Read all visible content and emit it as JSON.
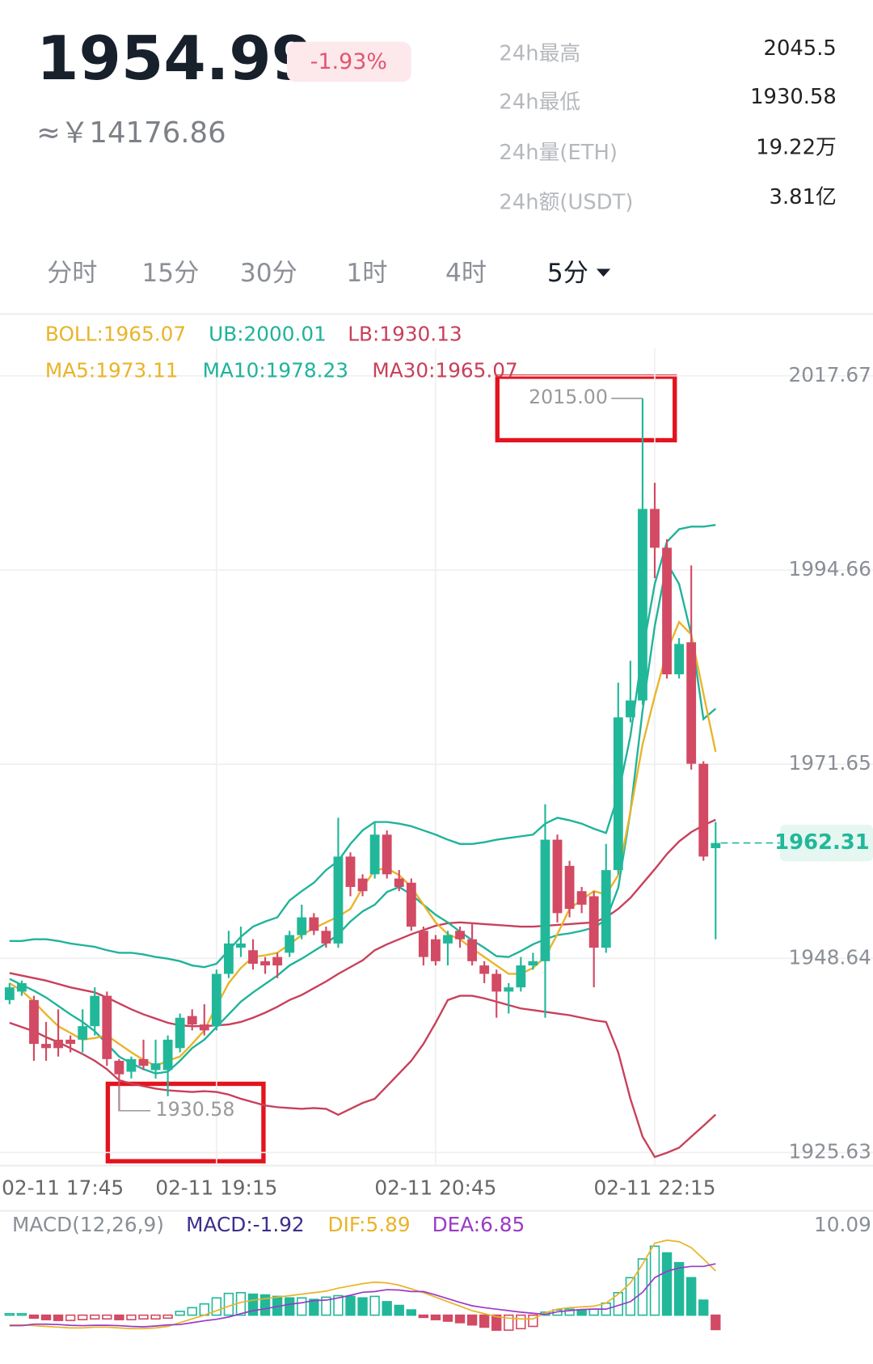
{
  "header": {
    "price": "1954.99",
    "change": "-1.93%",
    "cny": "≈￥14176.86",
    "stats": [
      {
        "label": "24h最高",
        "value": "2045.5"
      },
      {
        "label": "24h最低",
        "value": "1930.58"
      },
      {
        "label": "24h量(ETH)",
        "value": "19.22万"
      },
      {
        "label": "24h额(USDT)",
        "value": "3.81亿"
      }
    ]
  },
  "tabs": [
    {
      "label": "分时"
    },
    {
      "label": "15分"
    },
    {
      "label": "30分"
    },
    {
      "label": "1时"
    },
    {
      "label": "4时"
    },
    {
      "label": "5分",
      "active": true
    }
  ],
  "chart_data": [
    {
      "type": "candlestick",
      "legend": [
        [
          {
            "text": "BOLL:1965.07",
            "color": "#e9b429"
          },
          {
            "text": "UB:2000.01",
            "color": "#1fb39a"
          },
          {
            "text": "LB:1930.13",
            "color": "#c8405a"
          }
        ],
        [
          {
            "text": "MA5:1973.11",
            "color": "#e9b429"
          },
          {
            "text": "MA10:1978.23",
            "color": "#1fb39a"
          },
          {
            "text": "MA30:1965.07",
            "color": "#c8405a"
          }
        ]
      ],
      "ylim": [
        1924.08,
        2020.97
      ],
      "yticks": [
        2017.67,
        1994.66,
        1971.65,
        1948.64,
        1925.63
      ],
      "grid": true,
      "xticks": [
        {
          "value": -1,
          "label": "02-11 17:45"
        },
        {
          "value": 17,
          "label": "02-11 19:15"
        },
        {
          "value": 35,
          "label": "02-11 20:45"
        },
        {
          "value": 53,
          "label": "02-11 22:15"
        }
      ],
      "up_color": "#21b89a",
      "down_color": "#d24a64",
      "candles": {
        "open": [
          1943.7,
          1944.7,
          1943.7,
          1938.5,
          1939.0,
          1939.0,
          1939.0,
          1940.6,
          1944.2,
          1936.5,
          1935.2,
          1936.7,
          1935.4,
          1935.4,
          1938.0,
          1941.8,
          1940.8,
          1940.6,
          1946.8,
          1949.9,
          1949.6,
          1948.3,
          1948.8,
          1949.3,
          1951.4,
          1953.5,
          1951.9,
          1950.4,
          1960.7,
          1958.1,
          1958.6,
          1963.3,
          1958.1,
          1957.6,
          1951.9,
          1950.9,
          1950.4,
          1951.9,
          1950.9,
          1947.8,
          1946.8,
          1944.7,
          1945.2,
          1947.8,
          1948.3,
          1962.7,
          1959.6,
          1956.6,
          1956.0,
          1949.9,
          1959.1,
          1977.2,
          1979.2,
          2001.9,
          1997.3,
          1982.3,
          1986.1,
          1971.7,
          1961.7
        ],
        "high": [
          1945.7,
          1946.0,
          1944.2,
          1941.1,
          1942.6,
          1939.5,
          1942.6,
          1945.2,
          1944.7,
          1936.7,
          1937.0,
          1939.0,
          1939.0,
          1939.5,
          1942.1,
          1942.6,
          1943.2,
          1947.3,
          1951.9,
          1952.4,
          1950.9,
          1948.8,
          1949.3,
          1951.9,
          1955.0,
          1954.0,
          1952.4,
          1965.3,
          1961.2,
          1958.6,
          1964.8,
          1963.8,
          1959.1,
          1958.1,
          1952.4,
          1951.4,
          1951.9,
          1952.4,
          1952.9,
          1948.3,
          1947.3,
          1945.7,
          1948.8,
          1949.3,
          1966.9,
          1963.3,
          1960.2,
          1957.1,
          1956.6,
          1962.2,
          1981.3,
          1983.9,
          2015,
          2005.0,
          1998.3,
          1986.6,
          1995.2,
          1972.0,
          1964.8
        ],
        "low": [
          1943.2,
          1944.2,
          1936.5,
          1936.5,
          1937.0,
          1937.5,
          1937.5,
          1939.5,
          1935.9,
          1930.58,
          1934.4,
          1935.4,
          1934.4,
          1932.3,
          1937.5,
          1940.1,
          1939.5,
          1940.1,
          1946.3,
          1948.8,
          1947.3,
          1946.8,
          1946.3,
          1948.8,
          1950.9,
          1951.4,
          1949.9,
          1949.9,
          1956.0,
          1956.0,
          1958.1,
          1958.1,
          1956.6,
          1951.9,
          1947.8,
          1947.8,
          1947.8,
          1949.9,
          1947.8,
          1945.7,
          1941.6,
          1942.1,
          1944.7,
          1947.3,
          1941.6,
          1952.9,
          1953.5,
          1954.0,
          1945.2,
          1949.3,
          1958.6,
          1976.6,
          1978.7,
          1993.7,
          1981.8,
          1981.8,
          1971.0,
          1960.2,
          1950.9
        ],
        "close": [
          1945.2,
          1945.7,
          1938.5,
          1938.0,
          1938.0,
          1938.5,
          1940.6,
          1944.2,
          1936.7,
          1934.9,
          1936.7,
          1935.9,
          1936.2,
          1939.0,
          1941.6,
          1940.8,
          1940.1,
          1946.8,
          1950.4,
          1950.4,
          1948.0,
          1947.8,
          1947.8,
          1951.4,
          1953.5,
          1951.9,
          1950.4,
          1960.7,
          1957.1,
          1956.6,
          1963.3,
          1958.6,
          1957.1,
          1952.4,
          1948.8,
          1948.3,
          1951.4,
          1950.9,
          1948.3,
          1946.8,
          1944.7,
          1945.2,
          1947.8,
          1948.3,
          1962.7,
          1954.0,
          1954.5,
          1955.0,
          1949.9,
          1959.1,
          1977.2,
          1979.2,
          2001.9,
          1997.3,
          1982.3,
          1985.9,
          1971.7,
          1960.7,
          1962.31
        ]
      },
      "series": [
        {
          "color": "#1fb39a",
          "values": [
            1950.7,
            1950.7,
            1950.9,
            1950.9,
            1950.7,
            1950.4,
            1950.2,
            1950.0,
            1949.6,
            1949.3,
            1949.3,
            1949.1,
            1948.8,
            1948.6,
            1948.3,
            1947.8,
            1947.6,
            1948.0,
            1949.6,
            1951.2,
            1952.4,
            1953.0,
            1953.5,
            1955.5,
            1956.6,
            1957.6,
            1959.1,
            1960.2,
            1962.2,
            1963.8,
            1964.8,
            1964.8,
            1964.6,
            1964.3,
            1963.8,
            1963.3,
            1962.7,
            1962.2,
            1962.2,
            1962.4,
            1962.7,
            1962.9,
            1963.1,
            1963.3,
            1964.6,
            1965.3,
            1965.0,
            1964.6,
            1964.0,
            1963.5,
            1968.0,
            1975.0,
            1985.0,
            1993.0,
            1998.0,
            1999.5,
            1999.8,
            1999.8,
            2000.01
          ]
        },
        {
          "color": "#c8405a",
          "values": [
            1941.0,
            1940.5,
            1940.0,
            1939.3,
            1938.7,
            1938.0,
            1937.3,
            1936.5,
            1935.5,
            1934.2,
            1933.8,
            1933.5,
            1933.2,
            1933.0,
            1932.9,
            1932.8,
            1932.9,
            1932.8,
            1932.5,
            1932.0,
            1931.6,
            1931.2,
            1931.0,
            1930.9,
            1930.8,
            1930.9,
            1930.8,
            1930.1,
            1930.8,
            1931.5,
            1932.0,
            1933.5,
            1935.0,
            1936.5,
            1938.5,
            1941.0,
            1943.7,
            1944.2,
            1944.2,
            1943.9,
            1943.5,
            1943.1,
            1942.7,
            1942.5,
            1942.3,
            1942.1,
            1941.9,
            1941.6,
            1941.3,
            1941.1,
            1937.5,
            1932.0,
            1927.5,
            1925.1,
            1925.6,
            1926.2,
            1927.5,
            1928.8,
            1930.13
          ]
        },
        {
          "color": "#c8405a",
          "values": [
            1946.9,
            1946.6,
            1946.3,
            1946.0,
            1945.6,
            1945.2,
            1944.9,
            1944.6,
            1944.0,
            1943.3,
            1942.6,
            1942.0,
            1941.5,
            1941.0,
            1940.7,
            1940.6,
            1940.6,
            1940.7,
            1940.8,
            1941.1,
            1941.6,
            1942.2,
            1942.9,
            1943.7,
            1944.3,
            1945.1,
            1945.9,
            1946.8,
            1947.6,
            1948.4,
            1949.6,
            1950.3,
            1950.9,
            1951.5,
            1952.0,
            1952.5,
            1952.8,
            1952.9,
            1952.8,
            1952.7,
            1952.6,
            1952.5,
            1952.4,
            1952.4,
            1952.5,
            1952.6,
            1952.7,
            1952.8,
            1952.9,
            1953.5,
            1954.5,
            1955.8,
            1957.5,
            1959.2,
            1961.0,
            1962.5,
            1963.6,
            1964.4,
            1965.07
          ]
        },
        {
          "color": "#1fb39a",
          "values": [
            1946.2,
            1945.5,
            1944.8,
            1944.0,
            1943.0,
            1942.0,
            1941.1,
            1940.0,
            1938.5,
            1937.0,
            1936.2,
            1935.5,
            1935.0,
            1935.2,
            1936.5,
            1938.0,
            1939.0,
            1940.5,
            1942.0,
            1943.5,
            1944.6,
            1945.6,
            1946.6,
            1947.8,
            1948.6,
            1949.5,
            1950.4,
            1951.5,
            1953.0,
            1954.2,
            1955.0,
            1956.5,
            1957.1,
            1956.2,
            1955.0,
            1953.8,
            1952.9,
            1951.8,
            1950.8,
            1949.9,
            1948.9,
            1948.8,
            1949.5,
            1950.3,
            1950.9,
            1951.4,
            1951.6,
            1951.9,
            1952.3,
            1953.2,
            1957.0,
            1966.0,
            1978.0,
            1988.0,
            1995.5,
            1993.0,
            1987.0,
            1977.0,
            1978.23
          ]
        },
        {
          "color": "#e9b429",
          "values": [
            1945.7,
            1944.8,
            1943.5,
            1942.0,
            1940.6,
            1939.8,
            1939.0,
            1939.2,
            1939.5,
            1938.5,
            1937.5,
            1936.6,
            1935.9,
            1936.5,
            1937.0,
            1938.5,
            1940.1,
            1943.0,
            1945.7,
            1947.5,
            1948.8,
            1949.0,
            1949.3,
            1950.3,
            1951.4,
            1952.2,
            1952.9,
            1953.6,
            1954.5,
            1957.0,
            1959.1,
            1959.3,
            1958.5,
            1957.1,
            1955.0,
            1952.9,
            1951.5,
            1950.9,
            1949.8,
            1948.8,
            1947.8,
            1946.8,
            1946.8,
            1947.5,
            1948.8,
            1951.5,
            1954.5,
            1955.6,
            1956.6,
            1956.2,
            1958.5,
            1966.0,
            1974.0,
            1979.7,
            1985.0,
            1988.5,
            1987.0,
            1980.0,
            1973.11
          ]
        }
      ],
      "max_marker": {
        "value": 2015,
        "label": "2015.00"
      },
      "min_marker": 1930.58
    },
    {
      "type": "macd",
      "legend": [
        [
          {
            "text": "MACD(12,26,9)",
            "color": "#8a8f96"
          },
          {
            "text": "MACD:-1.92",
            "color": "#3d2e8c"
          },
          {
            "text": "DIF:5.89",
            "color": "#e9b429"
          },
          {
            "text": "DEA:6.85",
            "color": "#9a3bc6"
          }
        ]
      ],
      "ylim": [
        -5.57,
        10.09
      ],
      "yticks": [
        10.09
      ],
      "up_color": "#21b89a",
      "down_color": "#d24a64",
      "values": [
        0.2,
        0.2,
        -0.4,
        -0.6,
        -0.7,
        -0.7,
        -0.6,
        -0.5,
        -0.5,
        -0.6,
        -0.6,
        -0.5,
        -0.5,
        -0.4,
        0.5,
        1.0,
        1.5,
        2.3,
        2.9,
        3.0,
        2.8,
        2.7,
        2.5,
        2.3,
        2.3,
        2.1,
        2.4,
        2.6,
        2.5,
        2.3,
        2.5,
        1.8,
        1.3,
        0.7,
        -0.3,
        -0.6,
        -0.8,
        -1.0,
        -1.3,
        -1.6,
        -2.0,
        -2.0,
        -1.8,
        -1.5,
        0.4,
        0.7,
        0.8,
        0.7,
        0.8,
        1.6,
        3.0,
        5.0,
        7.5,
        9.2,
        8.3,
        7.0,
        5.0,
        2.0,
        -1.92
      ],
      "series": [
        {
          "color": "#e9b429",
          "values": [
            -1.3,
            -1.3,
            -1.4,
            -1.5,
            -1.6,
            -1.7,
            -1.7,
            -1.6,
            -1.6,
            -1.7,
            -1.8,
            -1.8,
            -1.7,
            -1.5,
            -1.0,
            -0.5,
            0,
            0.6,
            1.2,
            1.7,
            2.0,
            2.2,
            2.4,
            2.6,
            2.8,
            3.0,
            3.2,
            3.6,
            3.9,
            4.2,
            4.4,
            4.3,
            4.0,
            3.5,
            3.0,
            2.4,
            1.8,
            1.2,
            0.6,
            0.2,
            -0.2,
            -0.4,
            -0.5,
            -0.5,
            0.3,
            0.8,
            1.0,
            1.1,
            1.2,
            1.6,
            2.8,
            4.3,
            6.8,
            9.6,
            10.0,
            9.8,
            9.0,
            7.5,
            5.89
          ]
        },
        {
          "color": "#9a3bc6",
          "values": [
            -1.4,
            -1.4,
            -1.2,
            -1.2,
            -1.25,
            -1.35,
            -1.4,
            -1.35,
            -1.35,
            -1.4,
            -1.5,
            -1.55,
            -1.45,
            -1.3,
            -1.25,
            -1.0,
            -0.75,
            -0.55,
            -0.25,
            0.2,
            0.6,
            0.85,
            1.15,
            1.45,
            1.65,
            1.95,
            2.0,
            2.3,
            2.65,
            3.05,
            3.15,
            3.4,
            3.35,
            3.15,
            3.15,
            2.7,
            2.2,
            1.7,
            1.25,
            1.0,
            0.8,
            0.6,
            0.4,
            0.25,
            0.1,
            0.45,
            0.6,
            0.75,
            0.8,
            0.8,
            1.3,
            1.8,
            3.05,
            5.0,
            5.85,
            6.3,
            6.5,
            6.5,
            6.85
          ]
        }
      ]
    }
  ]
}
